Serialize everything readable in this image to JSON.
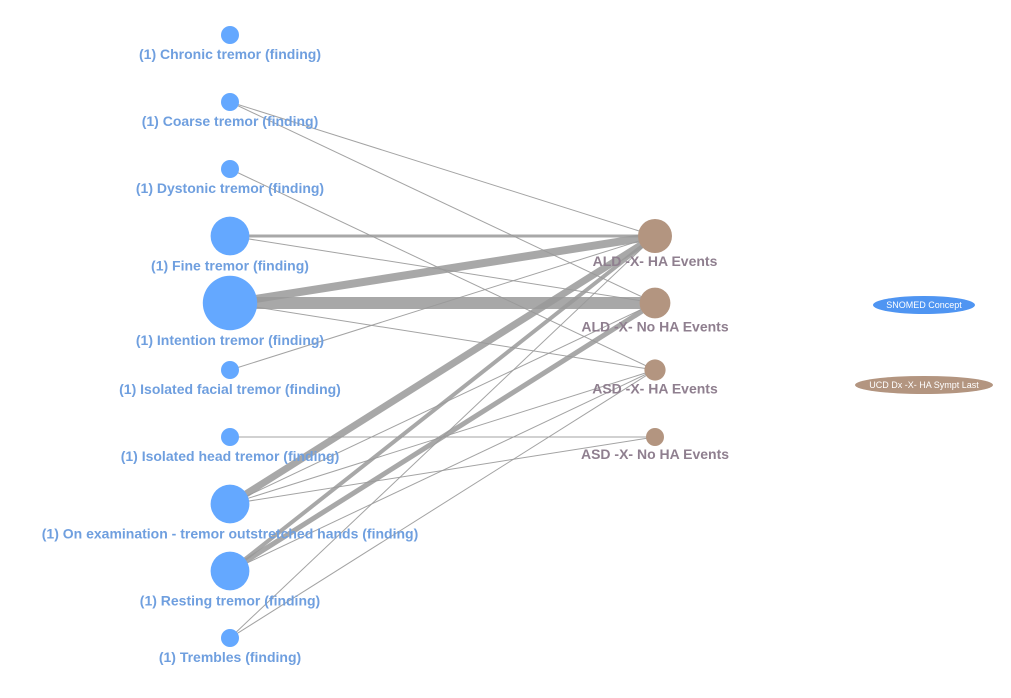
{
  "colors": {
    "concept_node": "#64a8ff",
    "concept_label": "#6f9fdf",
    "event_node": "#b39580",
    "event_label": "#8f7f8f",
    "edge": "#999999",
    "legend_concept_fill": "#4f95f2",
    "legend_event_fill": "#b39580",
    "legend_text": "#ffffff"
  },
  "legend": {
    "concept": "SNOMED Concept",
    "event": "UCD Dx -X- HA Sympt Last"
  },
  "concept_nodes": [
    {
      "id": "chronic",
      "label": "(1) Chronic tremor (finding)",
      "weight": 1
    },
    {
      "id": "coarse",
      "label": "(1) Coarse tremor (finding)",
      "weight": 1
    },
    {
      "id": "dystonic",
      "label": "(1) Dystonic tremor (finding)",
      "weight": 1
    },
    {
      "id": "fine",
      "label": "(1) Fine tremor (finding)",
      "weight": 5
    },
    {
      "id": "intention",
      "label": "(1) Intention tremor (finding)",
      "weight": 8
    },
    {
      "id": "facial",
      "label": "(1) Isolated facial tremor (finding)",
      "weight": 1
    },
    {
      "id": "head",
      "label": "(1) Isolated head tremor (finding)",
      "weight": 1
    },
    {
      "id": "outstretched",
      "label": "(1) On examination - tremor outstretched hands (finding)",
      "weight": 5
    },
    {
      "id": "resting",
      "label": "(1) Resting tremor (finding)",
      "weight": 5
    },
    {
      "id": "trembles",
      "label": "(1) Trembles (finding)",
      "weight": 1
    }
  ],
  "event_nodes": [
    {
      "id": "ald_ha",
      "label": "ALD -X- HA Events",
      "weight": 6
    },
    {
      "id": "ald_no",
      "label": "ALD -X- No HA Events",
      "weight": 5
    },
    {
      "id": "asd_ha",
      "label": "ASD -X- HA Events",
      "weight": 2
    },
    {
      "id": "asd_no",
      "label": "ASD -X- No HA Events",
      "weight": 1
    }
  ],
  "edges": [
    {
      "source": "coarse",
      "target": "ald_ha",
      "weight": 1
    },
    {
      "source": "coarse",
      "target": "ald_no",
      "weight": 1
    },
    {
      "source": "dystonic",
      "target": "asd_ha",
      "weight": 1
    },
    {
      "source": "fine",
      "target": "ald_ha",
      "weight": 3
    },
    {
      "source": "fine",
      "target": "ald_no",
      "weight": 1
    },
    {
      "source": "intention",
      "target": "ald_ha",
      "weight": 8
    },
    {
      "source": "intention",
      "target": "ald_no",
      "weight": 12
    },
    {
      "source": "intention",
      "target": "asd_ha",
      "weight": 1
    },
    {
      "source": "facial",
      "target": "ald_ha",
      "weight": 1
    },
    {
      "source": "head",
      "target": "asd_no",
      "weight": 1
    },
    {
      "source": "outstretched",
      "target": "ald_ha",
      "weight": 7
    },
    {
      "source": "outstretched",
      "target": "ald_no",
      "weight": 1
    },
    {
      "source": "outstretched",
      "target": "asd_ha",
      "weight": 1
    },
    {
      "source": "outstretched",
      "target": "asd_no",
      "weight": 1
    },
    {
      "source": "resting",
      "target": "ald_ha",
      "weight": 4
    },
    {
      "source": "resting",
      "target": "ald_no",
      "weight": 5
    },
    {
      "source": "resting",
      "target": "asd_ha",
      "weight": 1
    },
    {
      "source": "trembles",
      "target": "ald_ha",
      "weight": 1
    },
    {
      "source": "trembles",
      "target": "asd_ha",
      "weight": 1
    }
  ]
}
